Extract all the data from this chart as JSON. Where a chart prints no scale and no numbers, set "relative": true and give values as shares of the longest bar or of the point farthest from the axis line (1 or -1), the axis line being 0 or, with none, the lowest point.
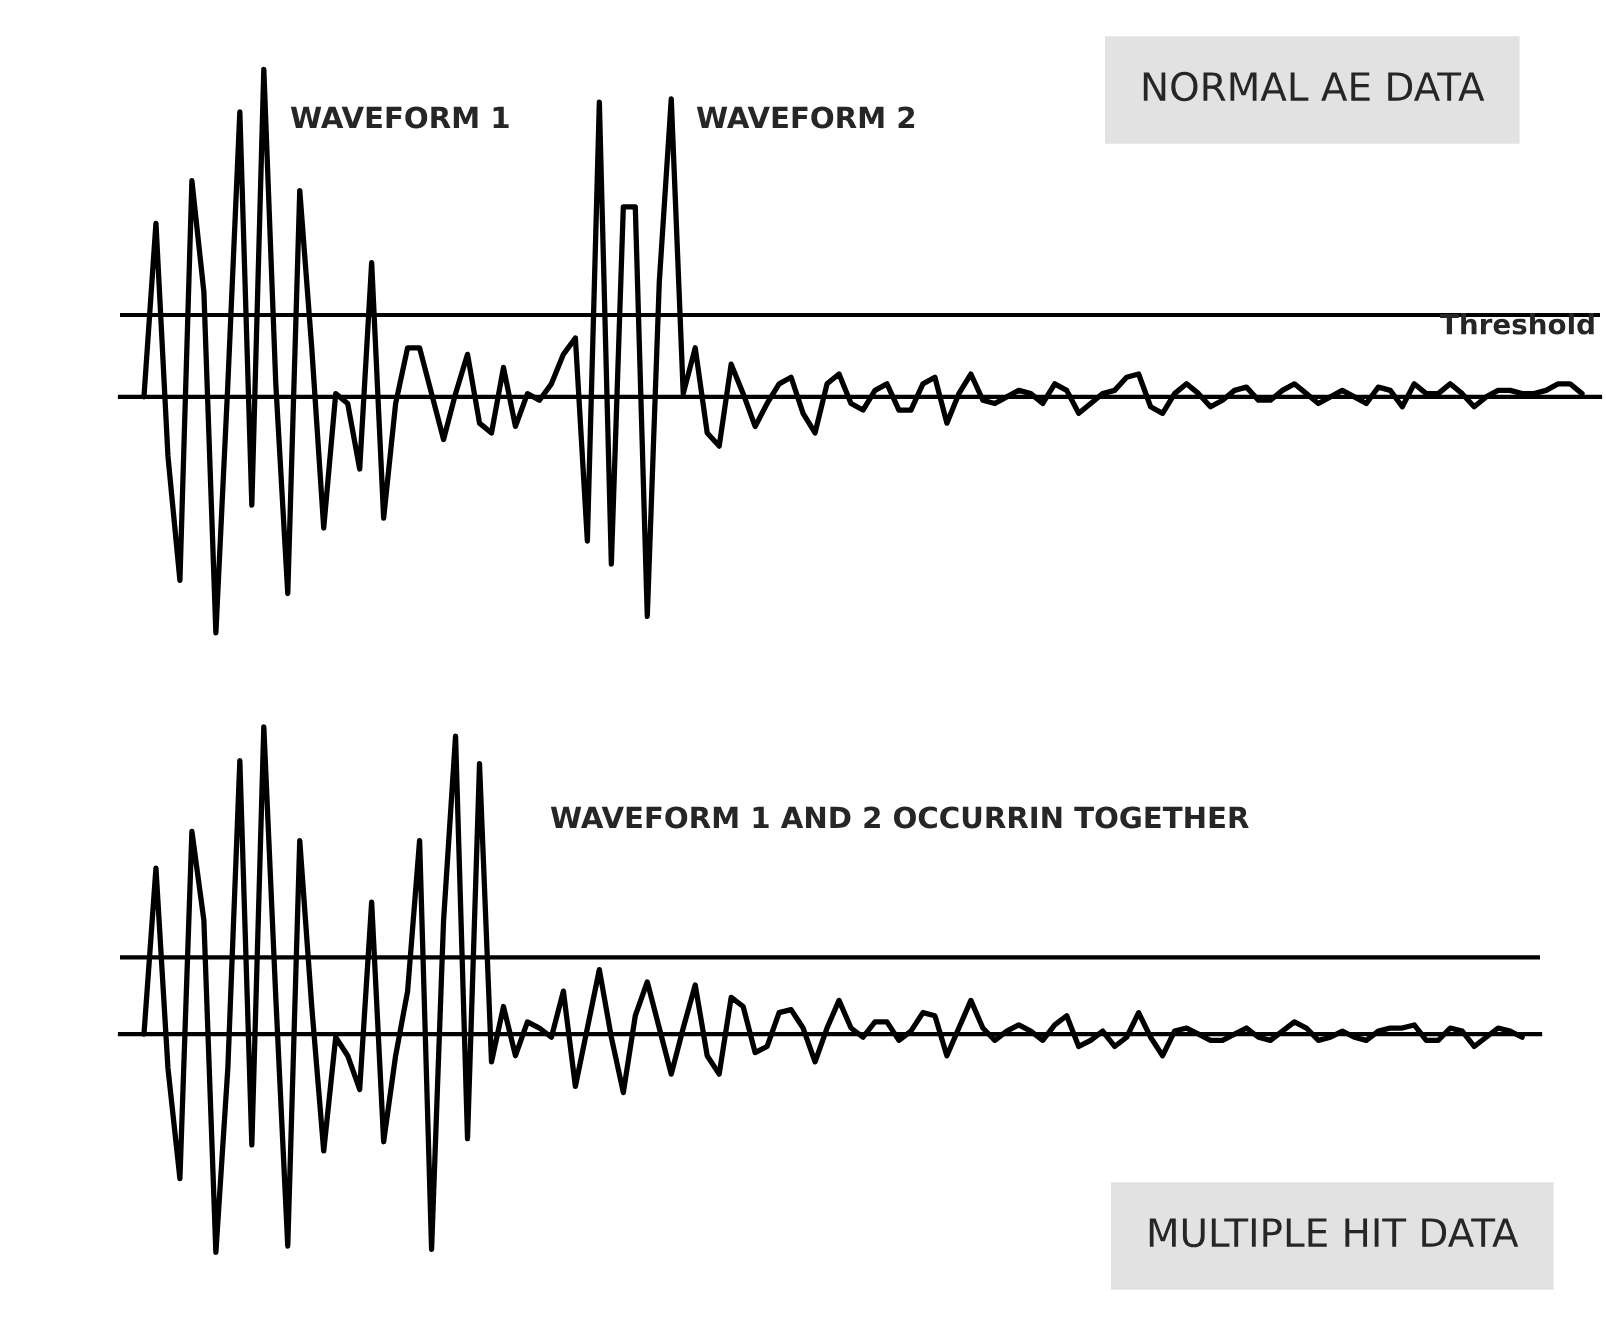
{
  "chart_data": [
    {
      "type": "line",
      "title": "NORMAL AE DATA",
      "annotations": [
        "WAVEFORM 1",
        "WAVEFORM 2"
      ],
      "relative": true,
      "categories": [
        null,
        null,
        null,
        null,
        null,
        null,
        null,
        null,
        null,
        null,
        null,
        null,
        null,
        null,
        null,
        null,
        null,
        null,
        null,
        null,
        null,
        null,
        null,
        null,
        null,
        null,
        null,
        null,
        null,
        null,
        null,
        null,
        null,
        null,
        null,
        null,
        null,
        null,
        null,
        null,
        null,
        null,
        null,
        null,
        null,
        null,
        null,
        null,
        null,
        null,
        null,
        null,
        null,
        null,
        null,
        null,
        null,
        null,
        null,
        null,
        null,
        null,
        null,
        null,
        null,
        null,
        null,
        null,
        null,
        null,
        null,
        null,
        null,
        null,
        null,
        null,
        null,
        null,
        null,
        null,
        null,
        null,
        null,
        null,
        null,
        null,
        null,
        null,
        null,
        null,
        null,
        null,
        null,
        null,
        null,
        null,
        null,
        null,
        null,
        null,
        null,
        null,
        null,
        null,
        null,
        null,
        null,
        null,
        null,
        null,
        null,
        null,
        null,
        null,
        null,
        null,
        null,
        null,
        null,
        null,
        null
      ],
      "ref_lines": [
        {
          "axis": "y",
          "value": 0.25,
          "label": "Threshold",
          "color": "#000000"
        }
      ],
      "series": [
        {
          "color": "#000000",
          "values": [
            0.0,
            0.53,
            -0.18,
            -0.56,
            0.66,
            0.32,
            -0.72,
            0.04,
            0.87,
            -0.33,
            1.0,
            0.04,
            -0.6,
            0.63,
            0.15,
            -0.4,
            0.01,
            -0.02,
            -0.22,
            0.41,
            -0.37,
            -0.02,
            0.15,
            0.15,
            0.01,
            -0.13,
            0.01,
            0.13,
            -0.08,
            -0.11,
            0.09,
            -0.09,
            0.01,
            -0.01,
            0.04,
            0.13,
            0.18,
            -0.44,
            0.9,
            -0.51,
            0.58,
            0.58,
            -0.67,
            0.35,
            0.91,
            0.01,
            0.15,
            -0.11,
            -0.15,
            0.1,
            0.01,
            -0.09,
            -0.02,
            0.04,
            0.06,
            -0.05,
            -0.11,
            0.04,
            0.07,
            -0.02,
            -0.04,
            0.02,
            0.04,
            -0.04,
            -0.04,
            0.04,
            0.06,
            -0.08,
            0.01,
            0.07,
            -0.01,
            -0.02,
            0.0,
            0.02,
            0.01,
            -0.02,
            0.04,
            0.02,
            -0.05,
            -0.02,
            0.01,
            0.02,
            0.06,
            0.07,
            -0.03,
            -0.05,
            0.01,
            0.04,
            0.01,
            -0.03,
            -0.01,
            0.02,
            0.03,
            -0.01,
            -0.01,
            0.02,
            0.04,
            0.01,
            -0.02,
            0.0,
            0.02,
            0.0,
            -0.02,
            0.03,
            0.02,
            -0.03,
            0.04,
            0.01,
            0.01,
            0.04,
            0.01,
            -0.03,
            0.0,
            0.02,
            0.02,
            0.01,
            0.01,
            0.02,
            0.04,
            0.04,
            0.01
          ]
        }
      ]
    },
    {
      "type": "line",
      "title": "MULTIPLE HIT DATA",
      "annotations": [
        "WAVEFORM 1 AND 2 OCCURRIN TOGETHER"
      ],
      "relative": true,
      "categories": [
        null,
        null,
        null,
        null,
        null,
        null,
        null,
        null,
        null,
        null,
        null,
        null,
        null,
        null,
        null,
        null,
        null,
        null,
        null,
        null,
        null,
        null,
        null,
        null,
        null,
        null,
        null,
        null,
        null,
        null,
        null,
        null,
        null,
        null,
        null,
        null,
        null,
        null,
        null,
        null,
        null,
        null,
        null,
        null,
        null,
        null,
        null,
        null,
        null,
        null,
        null,
        null,
        null,
        null,
        null,
        null,
        null,
        null,
        null,
        null,
        null,
        null,
        null,
        null,
        null,
        null,
        null,
        null,
        null,
        null,
        null,
        null,
        null,
        null,
        null,
        null,
        null,
        null,
        null,
        null,
        null,
        null,
        null,
        null,
        null,
        null,
        null,
        null,
        null,
        null,
        null,
        null,
        null,
        null,
        null,
        null,
        null,
        null,
        null,
        null,
        null,
        null,
        null,
        null,
        null,
        null,
        null,
        null,
        null,
        null,
        null,
        null,
        null,
        null,
        null,
        null
      ],
      "ref_lines": [
        {
          "axis": "y",
          "value": 0.25,
          "color": "#000000"
        }
      ],
      "series": [
        {
          "color": "#000000",
          "values": [
            0.0,
            0.54,
            -0.11,
            -0.47,
            0.66,
            0.37,
            -0.71,
            -0.11,
            0.89,
            -0.36,
            1.0,
            0.12,
            -0.69,
            0.63,
            0.09,
            -0.38,
            -0.01,
            -0.07,
            -0.18,
            0.43,
            -0.35,
            -0.07,
            0.14,
            0.63,
            -0.7,
            0.37,
            0.97,
            -0.34,
            0.88,
            -0.09,
            0.09,
            -0.07,
            0.04,
            0.02,
            -0.01,
            0.14,
            -0.17,
            0.02,
            0.21,
            -0.01,
            -0.19,
            0.06,
            0.17,
            0.02,
            -0.13,
            0.02,
            0.16,
            -0.07,
            -0.13,
            0.12,
            0.09,
            -0.06,
            -0.04,
            0.07,
            0.08,
            0.02,
            -0.09,
            0.02,
            0.11,
            0.02,
            -0.01,
            0.04,
            0.04,
            -0.02,
            0.01,
            0.07,
            0.06,
            -0.07,
            0.02,
            0.11,
            0.02,
            -0.02,
            0.01,
            0.03,
            0.01,
            -0.02,
            0.03,
            0.06,
            -0.04,
            -0.02,
            0.01,
            -0.04,
            -0.01,
            0.07,
            -0.01,
            -0.07,
            0.01,
            0.02,
            0.0,
            -0.02,
            -0.02,
            0.0,
            0.02,
            -0.01,
            -0.02,
            0.01,
            0.04,
            0.02,
            -0.02,
            -0.01,
            0.01,
            -0.01,
            -0.02,
            0.01,
            0.02,
            0.02,
            0.03,
            -0.02,
            -0.02,
            0.02,
            0.01,
            -0.04,
            -0.01,
            0.02,
            0.01,
            -0.01
          ]
        }
      ]
    }
  ]
}
